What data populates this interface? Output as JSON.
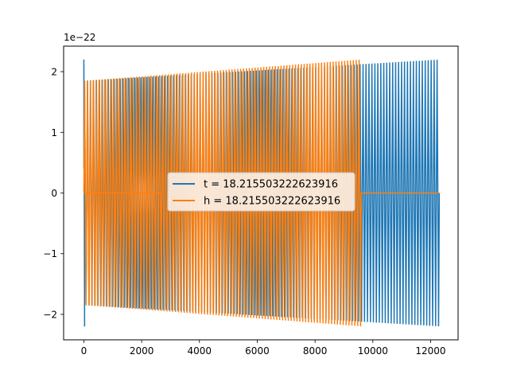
{
  "chart_data": {
    "type": "line",
    "title": "",
    "xlabel": "",
    "ylabel": "",
    "xlim": [
      -700,
      12950
    ],
    "ylim": [
      -2.42,
      2.42
    ],
    "offset_text": "1e−22",
    "x_ticks": [
      0,
      2000,
      4000,
      6000,
      8000,
      10000,
      12000
    ],
    "x_tick_labels": [
      "0",
      "2000",
      "4000",
      "6000",
      "8000",
      "10000",
      "12000"
    ],
    "y_ticks": [
      -2,
      -1,
      0,
      1,
      2
    ],
    "y_tick_labels": [
      "−2",
      "−1",
      "0",
      "1",
      "2"
    ],
    "grid": false,
    "legend_position": "center",
    "series": [
      {
        "name": "t = 18.215503222623916",
        "color": "#1f77b4",
        "x_range": [
          0,
          12300
        ],
        "amplitude_start": 1.85,
        "amplitude_end": 2.2,
        "initial_spike": 2.2,
        "cycles": 120
      },
      {
        "name": "h = 18.215503222623916",
        "color": "#ff7f0e",
        "x_range": [
          0,
          9600
        ],
        "amplitude_start": 1.85,
        "amplitude_end": 2.2,
        "cycles": 96,
        "flat_after": 9600,
        "flat_until": 12300
      }
    ]
  }
}
